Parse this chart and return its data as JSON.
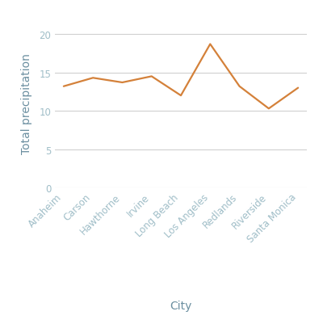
{
  "cities": [
    "Anaheim",
    "Carson",
    "Hawthorne",
    "Irvine",
    "Long Beach",
    "Los Angeles",
    "Redlands",
    "Riverside",
    "Santa Monica"
  ],
  "precipitation": [
    13.2,
    14.3,
    13.7,
    14.5,
    12.0,
    18.7,
    13.2,
    10.3,
    13.0
  ],
  "line_color": "#d4813a",
  "line_width": 1.6,
  "ylabel": "Total precipitation",
  "xlabel": "City",
  "ylim": [
    0,
    22
  ],
  "yticks": [
    0,
    5,
    10,
    15,
    20
  ],
  "background_color": "#ffffff",
  "grid_color": "#d0d0d0",
  "tick_label_color": "#a0bec8",
  "axis_label_color": "#6b8fa0",
  "label_fontsize": 10,
  "tick_fontsize": 8.5
}
